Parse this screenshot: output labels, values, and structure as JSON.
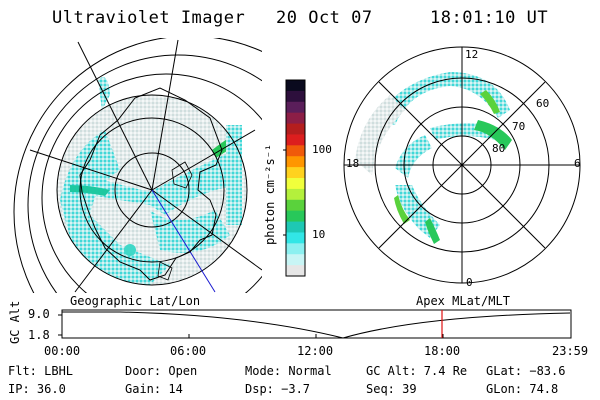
{
  "header": {
    "title": "Ultraviolet Imager",
    "date": "20 Oct 07",
    "time": "18:01:10 UT"
  },
  "colorbar": {
    "label": "photon cm⁻²s⁻¹",
    "ticks": [
      "100",
      "10"
    ],
    "colors": [
      "#0a0a1e",
      "#2d0f3c",
      "#5a1e5a",
      "#8c1e46",
      "#b41e1e",
      "#dc1e1e",
      "#f05a0a",
      "#ff9600",
      "#ffd21e",
      "#f0ff3c",
      "#b4f03c",
      "#5ad23c",
      "#28c85a",
      "#1ec8b4",
      "#32e6e6",
      "#8cf0f0",
      "#c8f5f5",
      "#e6e6e6"
    ]
  },
  "left_panel": {
    "title": "Geographic Lat/Lon"
  },
  "right_panel": {
    "title": "Apex  MLat/MLT",
    "mlt_labels": [
      "12",
      "18",
      "6",
      "0"
    ],
    "lat_labels": [
      "60",
      "70",
      "80"
    ]
  },
  "altitude_plot": {
    "ylabel": "GC Alt",
    "y_ticks": [
      "9.0",
      "1.8"
    ],
    "x_ticks": [
      "00:00",
      "06:00",
      "12:00",
      "18:00",
      "23:59"
    ],
    "marker_time": "18:01",
    "marker_color": "#e01010"
  },
  "info": {
    "row1": {
      "flt": "Flt: LBHL",
      "door": "Door: Open",
      "mode": "Mode: Normal",
      "gcalt": "GC Alt: 7.4 Re",
      "glat": "GLat: −83.6"
    },
    "row2": {
      "ip": "IP: 36.0",
      "gain": "Gain: 14",
      "dsp": "Dsp:   −3.7",
      "seq": "Seq: 39",
      "glon": "GLon:  74.8"
    }
  }
}
